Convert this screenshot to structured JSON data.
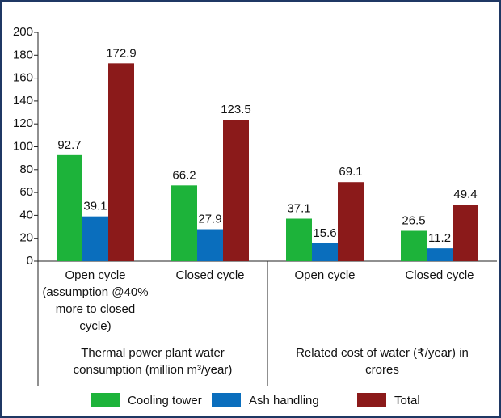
{
  "chart_data": {
    "type": "bar",
    "categories": [
      "Open cycle (assumption @40% more to closed cycle)",
      "Closed cycle",
      "Open cycle",
      "Closed cycle"
    ],
    "groups": [
      {
        "label": "Thermal power plant water consumption (million m³/year)",
        "categories": [
          0,
          1
        ]
      },
      {
        "label": "Related cost of water (₹/year) in crores",
        "categories": [
          2,
          3
        ]
      }
    ],
    "series": [
      {
        "name": "Cooling tower",
        "color": "#1db33a",
        "values": [
          92.7,
          66.2,
          37.1,
          26.5
        ]
      },
      {
        "name": "Ash handling",
        "color": "#0a6ebd",
        "values": [
          39.1,
          27.9,
          15.6,
          11.2
        ]
      },
      {
        "name": "Total",
        "color": "#8b1a1a",
        "values": [
          172.9,
          123.5,
          69.1,
          49.4
        ]
      }
    ],
    "ylim": [
      0,
      200
    ],
    "yticks": [
      0,
      20,
      40,
      60,
      80,
      100,
      120,
      140,
      160,
      180,
      200
    ],
    "grid": false
  }
}
